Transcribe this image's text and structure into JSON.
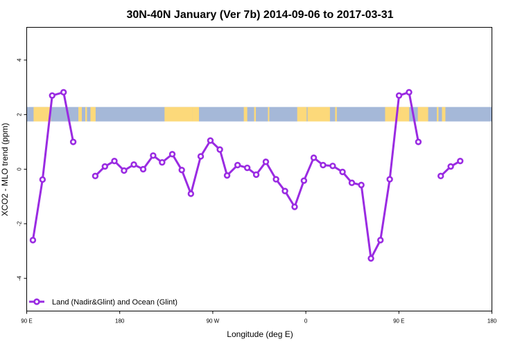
{
  "chart_data": {
    "type": "line",
    "title": "30N-40N January (Ver 7b)   2014-09-06 to 2017-03-31",
    "xlabel": "Longitude (deg E)",
    "ylabel": "XCO2 - MLO trend (ppm)",
    "xlim": [
      -90,
      180
    ],
    "ylim": [
      -5.2,
      5.2
    ],
    "x_ticks": [
      {
        "value": -90,
        "label": "90 E"
      },
      {
        "value": -36,
        "label": "180"
      },
      {
        "value": 18,
        "label": "90 W"
      },
      {
        "value": 72,
        "label": "0"
      },
      {
        "value": 126,
        "label": "90 E"
      },
      {
        "value": 180,
        "label": "180"
      }
    ],
    "y_ticks": [
      {
        "value": -4,
        "label": "-4"
      },
      {
        "value": -2,
        "label": "-2"
      },
      {
        "value": 0,
        "label": "0"
      },
      {
        "value": 2,
        "label": "2"
      },
      {
        "value": 4,
        "label": "4"
      }
    ],
    "grid": false,
    "legend_position": "bottom-left",
    "land_ocean_strip": {
      "y_range": [
        1.75,
        2.28
      ],
      "ocean_color": "#a5b8d8",
      "land_color": "#fcd97a",
      "land_x_ranges": [
        [
          -86,
          -76
        ],
        [
          -60,
          -58
        ],
        [
          -56,
          -55
        ],
        [
          -53,
          -50
        ],
        [
          -10,
          6
        ],
        [
          6,
          10
        ],
        [
          36,
          38
        ],
        [
          42,
          43
        ],
        [
          50,
          50.8
        ],
        [
          67,
          72.5
        ],
        [
          73,
          86
        ],
        [
          89,
          90
        ],
        [
          118,
          132
        ],
        [
          137,
          143
        ],
        [
          148,
          149
        ],
        [
          151,
          153
        ]
      ]
    },
    "series": [
      {
        "name": "Land (Nadir&Glint) and Ocean (Glint)",
        "color": "#9a2be2",
        "segments": [
          [
            {
              "x": -86.4,
              "y": -2.6
            },
            {
              "x": -80.8,
              "y": -0.38
            },
            {
              "x": -75.2,
              "y": 2.7
            },
            {
              "x": -68.6,
              "y": 2.82
            },
            {
              "x": -63.0,
              "y": 1.0
            }
          ],
          [
            {
              "x": -50.2,
              "y": -0.25
            },
            {
              "x": -44.6,
              "y": 0.1
            },
            {
              "x": -39.1,
              "y": 0.3
            },
            {
              "x": -33.5,
              "y": -0.05
            },
            {
              "x": -27.8,
              "y": 0.17
            },
            {
              "x": -22.4,
              "y": 0.0
            },
            {
              "x": -16.6,
              "y": 0.5
            },
            {
              "x": -11.4,
              "y": 0.25
            },
            {
              "x": -5.5,
              "y": 0.55
            },
            {
              "x": 0.0,
              "y": -0.03
            },
            {
              "x": 5.3,
              "y": -0.9
            },
            {
              "x": 11.0,
              "y": 0.47
            },
            {
              "x": 16.6,
              "y": 1.05
            },
            {
              "x": 22.1,
              "y": 0.72
            },
            {
              "x": 26.3,
              "y": -0.23
            },
            {
              "x": 32.4,
              "y": 0.15
            },
            {
              "x": 38.0,
              "y": 0.05
            },
            {
              "x": 43.2,
              "y": -0.2
            },
            {
              "x": 48.8,
              "y": 0.27
            },
            {
              "x": 54.7,
              "y": -0.37
            },
            {
              "x": 59.9,
              "y": -0.8
            },
            {
              "x": 65.5,
              "y": -1.38
            },
            {
              "x": 70.9,
              "y": -0.42
            },
            {
              "x": 76.6,
              "y": 0.42
            },
            {
              "x": 82.0,
              "y": 0.15
            },
            {
              "x": 87.6,
              "y": 0.12
            },
            {
              "x": 93.3,
              "y": -0.1
            },
            {
              "x": 98.7,
              "y": -0.5
            },
            {
              "x": 104.2,
              "y": -0.58
            },
            {
              "x": 109.8,
              "y": -3.27
            },
            {
              "x": 115.3,
              "y": -2.6
            },
            {
              "x": 120.7,
              "y": -0.37
            },
            {
              "x": 126.1,
              "y": 2.7
            },
            {
              "x": 131.9,
              "y": 2.82
            },
            {
              "x": 137.3,
              "y": 1.0
            }
          ],
          [
            {
              "x": 150.3,
              "y": -0.25
            },
            {
              "x": 156.1,
              "y": 0.1
            },
            {
              "x": 161.6,
              "y": 0.3
            }
          ]
        ]
      }
    ]
  }
}
